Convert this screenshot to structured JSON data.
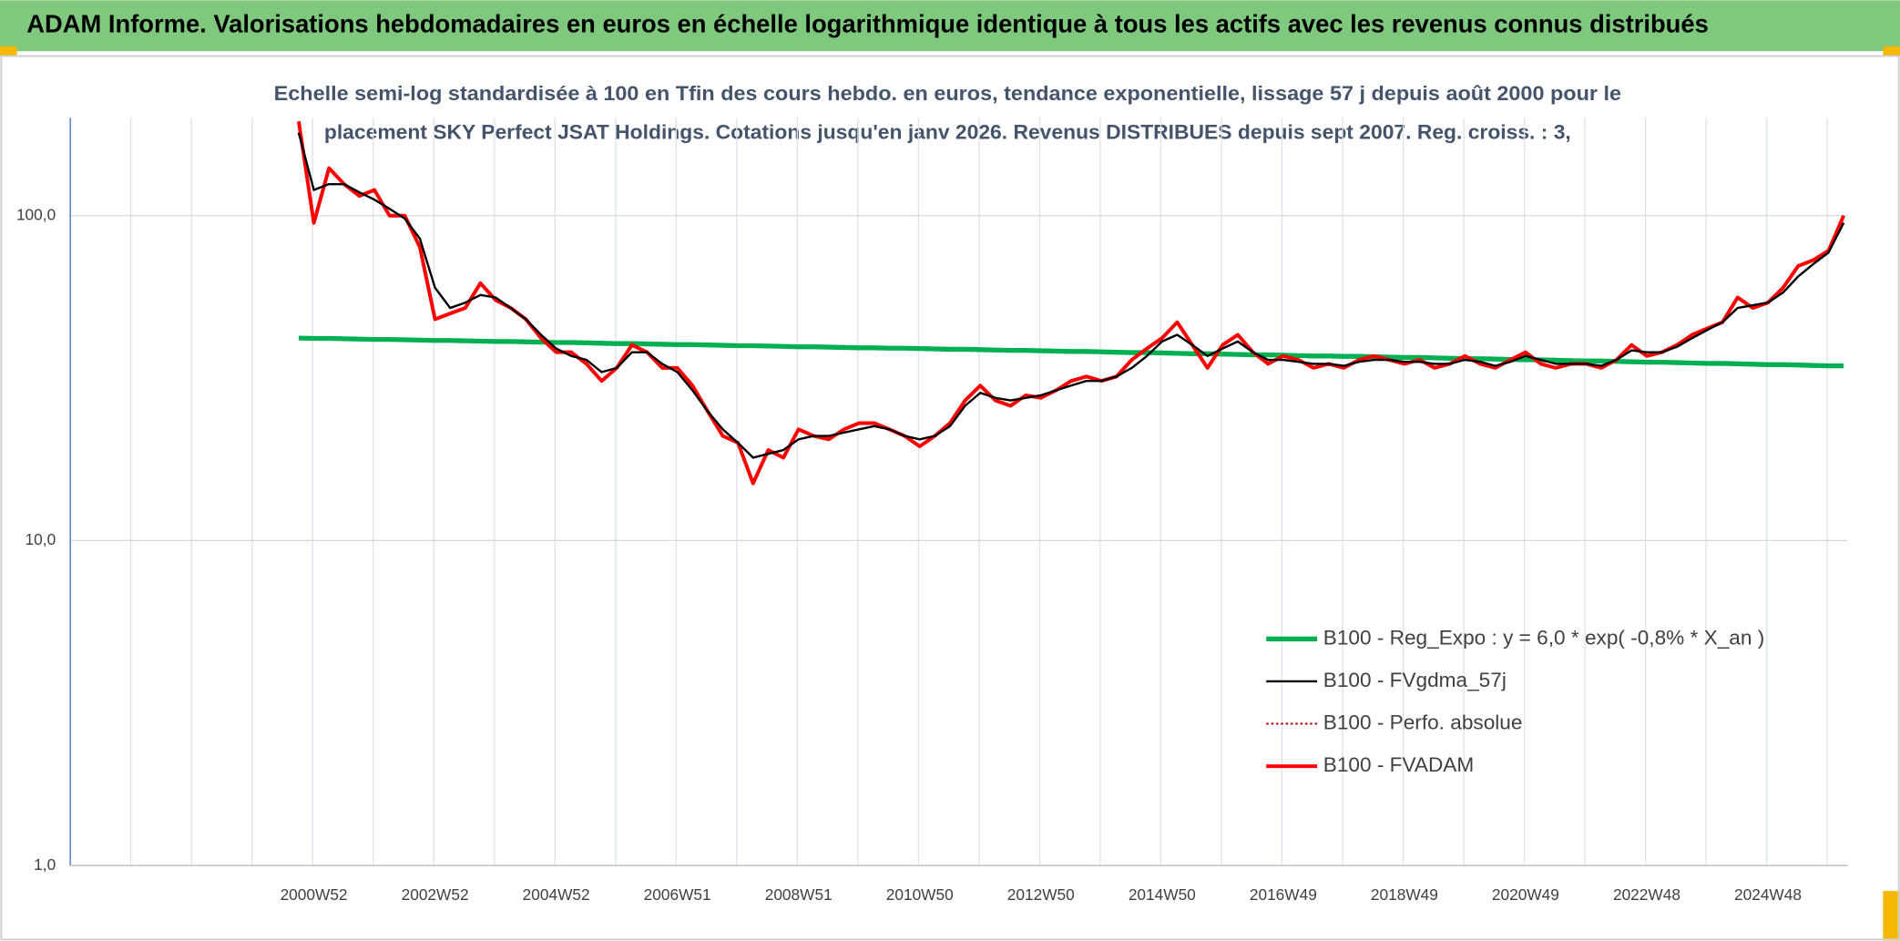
{
  "chart_data": {
    "type": "line",
    "title": "ADAM Informe. Valorisations hebdomadaires en euros en échelle logarithmique identique à tous les actifs avec les revenus connus distribués",
    "subtitle": [
      "Echelle semi-log standardisée à 100 en Tfin des cours hebdo. en euros, tendance exponentielle, lissage 57 j depuis août 2000 pour le",
      "placement SKY Perfect JSAT Holdings. Cotations jusqu'en janv 2026. Revenus DISTRIBUES depuis sept 2007. Reg. croiss. : 3,"
    ],
    "categories": [
      null,
      "2000W52",
      null,
      null,
      null,
      null,
      null,
      null,
      null,
      "2002W52",
      null,
      null,
      null,
      null,
      null,
      null,
      null,
      "2004W52",
      null,
      null,
      null,
      null,
      null,
      null,
      null,
      "2006W51",
      null,
      null,
      null,
      null,
      null,
      null,
      null,
      "2008W51",
      null,
      null,
      null,
      null,
      null,
      null,
      null,
      "2010W50",
      null,
      null,
      null,
      null,
      null,
      null,
      null,
      "2012W50",
      null,
      null,
      null,
      null,
      null,
      null,
      null,
      "2014W50",
      null,
      null,
      null,
      null,
      null,
      null,
      null,
      "2016W49",
      null,
      null,
      null,
      null,
      null,
      null,
      null,
      "2018W49",
      null,
      null,
      null,
      null,
      null,
      null,
      null,
      "2020W49",
      null,
      null,
      null,
      null,
      null,
      null,
      null,
      "2022W48",
      null,
      null,
      null,
      null,
      null,
      null,
      null,
      "2024W48",
      null,
      null,
      null,
      null,
      null
    ],
    "log_scale": true,
    "ylim": [
      1,
      200
    ],
    "yticks": [
      {
        "value": 1,
        "label": "1,0"
      },
      {
        "value": 10,
        "label": "10,0"
      },
      {
        "value": 100,
        "label": "100,0"
      }
    ],
    "grid": true,
    "legend": "lower right",
    "series": [
      {
        "name": "B100 - Reg_Expo : y = 6,0 * exp( -0,8% *  X_an )",
        "color": "#00b050",
        "values": [
          42.0,
          41.9,
          41.9,
          41.8,
          41.7,
          41.6,
          41.6,
          41.5,
          41.4,
          41.3,
          41.3,
          41.2,
          41.1,
          41.0,
          41.0,
          40.9,
          40.8,
          40.7,
          40.7,
          40.6,
          40.5,
          40.4,
          40.4,
          40.3,
          40.2,
          40.1,
          40.1,
          40.0,
          39.9,
          39.8,
          39.8,
          39.7,
          39.6,
          39.5,
          39.5,
          39.4,
          39.3,
          39.2,
          39.2,
          39.1,
          39.1,
          39.0,
          38.9,
          38.8,
          38.8,
          38.7,
          38.6,
          38.5,
          38.5,
          38.4,
          38.3,
          38.2,
          38.2,
          38.1,
          38.0,
          37.9,
          37.9,
          37.8,
          37.7,
          37.6,
          37.6,
          37.5,
          37.4,
          37.3,
          37.3,
          37.2,
          37.1,
          37.0,
          37.0,
          36.9,
          36.9,
          36.8,
          36.7,
          36.6,
          36.6,
          36.5,
          36.4,
          36.3,
          36.3,
          36.2,
          36.1,
          36.0,
          36.0,
          35.9,
          35.8,
          35.7,
          35.7,
          35.6,
          35.5,
          35.4,
          35.4,
          35.3,
          35.2,
          35.1,
          35.1,
          35.0,
          34.9,
          34.8,
          34.8,
          34.7,
          34.6,
          34.5,
          34.5
        ]
      },
      {
        "name": "B100 - FVgdma_57j",
        "color": "#000000",
        "values": [
          180,
          120,
          125,
          125,
          118,
          112,
          105,
          98,
          85,
          60,
          52,
          54,
          57,
          56,
          52,
          48,
          43,
          39,
          37,
          36,
          33,
          34,
          38,
          38,
          35,
          33,
          29,
          25,
          22,
          20,
          18,
          18.5,
          19,
          20.5,
          21,
          21,
          21.5,
          22,
          22.5,
          22,
          21,
          20.5,
          21,
          22.5,
          26,
          28.5,
          27.5,
          27,
          27.5,
          28,
          29,
          30,
          31,
          31,
          32,
          34,
          37,
          41,
          43,
          40,
          37,
          39,
          41,
          38,
          36,
          36,
          35.5,
          35,
          35,
          34.5,
          35.5,
          36,
          36,
          35.5,
          35.5,
          35,
          35,
          36,
          35.5,
          34.5,
          35.5,
          37,
          36,
          35,
          35,
          35,
          34.5,
          36,
          38.5,
          38,
          38,
          39.5,
          42,
          44.5,
          47,
          52,
          53,
          54,
          58,
          65,
          71,
          77,
          95
        ]
      },
      {
        "name": "B100 - Perfo. absolue",
        "color": "#c00000",
        "dotted": true,
        "values": [
          195,
          95,
          140,
          125,
          115,
          120,
          100,
          100,
          80,
          48,
          50,
          52,
          62,
          55,
          52,
          48,
          42,
          38,
          38,
          35,
          31,
          34,
          40,
          38,
          34,
          34,
          30,
          25,
          21,
          20,
          15,
          19,
          18,
          22,
          21,
          20.5,
          22,
          23,
          23,
          22,
          21,
          19.5,
          21,
          23,
          27,
          30,
          27,
          26,
          28,
          27.5,
          29,
          31,
          32,
          31,
          32,
          36,
          39,
          42,
          47,
          40,
          34,
          40,
          43,
          38,
          35,
          37,
          36,
          34,
          35,
          34,
          36,
          37,
          36,
          35,
          36,
          34,
          35,
          37,
          35,
          34,
          36,
          38,
          35,
          34,
          35,
          35,
          34,
          36,
          40,
          37,
          38,
          40,
          43,
          45,
          47,
          56,
          52,
          54,
          60,
          70,
          73,
          78,
          100
        ]
      },
      {
        "name": "B100 - FVADAM",
        "color": "#ff0000",
        "values": [
          195,
          95,
          140,
          125,
          115,
          120,
          100,
          100,
          80,
          48,
          50,
          52,
          62,
          55,
          52,
          48,
          42,
          38,
          38,
          35,
          31,
          34,
          40,
          38,
          34,
          34,
          30,
          25,
          21,
          20,
          15,
          19,
          18,
          22,
          21,
          20.5,
          22,
          23,
          23,
          22,
          21,
          19.5,
          21,
          23,
          27,
          30,
          27,
          26,
          28,
          27.5,
          29,
          31,
          32,
          31,
          32,
          36,
          39,
          42,
          47,
          40,
          34,
          40,
          43,
          38,
          35,
          37,
          36,
          34,
          35,
          34,
          36,
          37,
          36,
          35,
          36,
          34,
          35,
          37,
          35,
          34,
          36,
          38,
          35,
          34,
          35,
          35,
          34,
          36,
          40,
          37,
          38,
          40,
          43,
          45,
          47,
          56,
          52,
          54,
          60,
          70,
          73,
          78,
          100
        ]
      }
    ]
  }
}
